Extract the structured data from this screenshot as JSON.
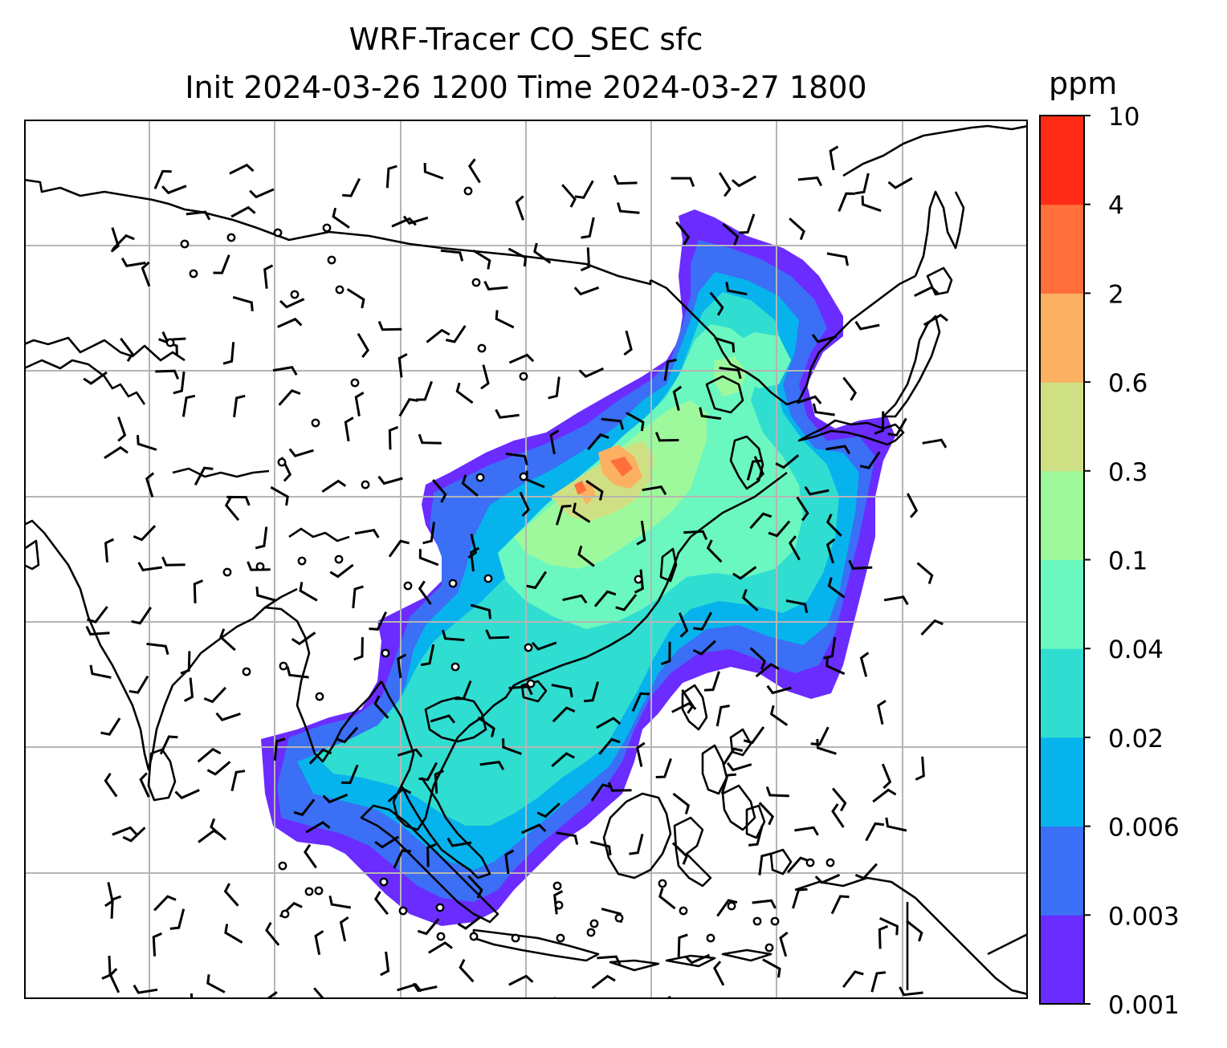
{
  "title": {
    "line1": "WRF-Tracer CO_SEC sfc",
    "line2": "Init 2024-03-26 1200 Time 2024-03-27 1800"
  },
  "colorbar": {
    "unit": "ppm",
    "ticks": [
      "0.001",
      "0.003",
      "0.006",
      "0.02",
      "0.04",
      "0.1",
      "0.3",
      "0.6",
      "2",
      "4",
      "10"
    ],
    "colors": [
      "#6a2cff",
      "#3a6ff6",
      "#07b3ec",
      "#30ddd1",
      "#6bf7c0",
      "#9ef99c",
      "#cfe084",
      "#fcb062",
      "#ff6e3b",
      "#ff2b16"
    ]
  },
  "map": {
    "gridline_color": "#b5b5b5",
    "coastline_color": "#000000",
    "wind_barb_color": "#000000"
  }
}
